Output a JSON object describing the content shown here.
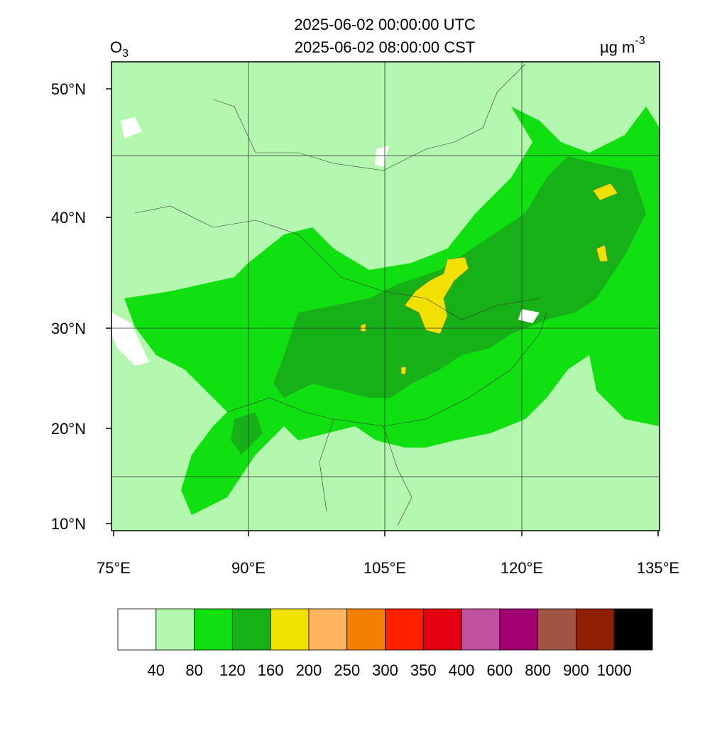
{
  "header": {
    "title_lines": [
      "2025-06-02 00:00:00 UTC",
      "2025-06-02 08:00:00 CST"
    ],
    "variable": {
      "base": "O",
      "subscript": "3"
    },
    "units": {
      "base": "µg m",
      "superscript": "-3"
    }
  },
  "map": {
    "lat_labels": [
      "50°N",
      "40°N",
      "30°N",
      "20°N",
      "10°N"
    ],
    "lon_labels": [
      "75°E",
      "90°E",
      "105°E",
      "120°E",
      "135°E"
    ]
  },
  "colorbar": {
    "colors": [
      "#ffffff",
      "#b4f8b0",
      "#10e010",
      "#18b018",
      "#f2e000",
      "#ffb460",
      "#f58000",
      "#ff2000",
      "#e00010",
      "#c050a0",
      "#a00070",
      "#a05545",
      "#8c2000",
      "#000000"
    ],
    "labels": [
      40,
      80,
      120,
      160,
      200,
      250,
      300,
      350,
      400,
      600,
      800,
      900,
      1000
    ]
  }
}
